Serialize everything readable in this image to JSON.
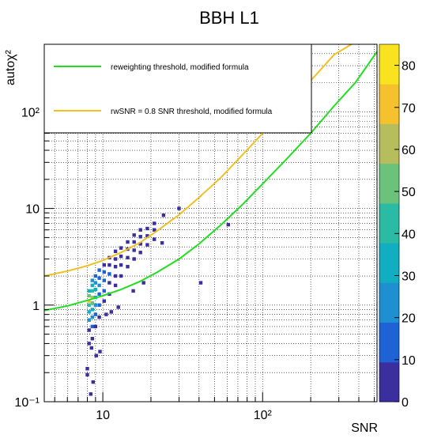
{
  "chart_data": {
    "type": "heatmap",
    "title": "BBH L1",
    "xlabel": "SNR",
    "ylabel": "autoχ²",
    "x_scale": "log",
    "y_scale": "log",
    "xlim": [
      4.3,
      520
    ],
    "ylim": [
      0.1,
      500
    ],
    "grid": true,
    "legend_position": "top-left",
    "x_tick_labels": [
      {
        "value": 10,
        "label": "10"
      },
      {
        "value": 100,
        "label": "10²"
      }
    ],
    "y_tick_labels": [
      {
        "value": 0.1,
        "label": "10⁻¹"
      },
      {
        "value": 1,
        "label": "1"
      },
      {
        "value": 10,
        "label": "10"
      },
      {
        "value": 100,
        "label": "10²"
      }
    ],
    "colorbar": {
      "min": 0,
      "max": 85,
      "ticks": [
        0,
        10,
        20,
        30,
        40,
        50,
        60,
        70,
        80
      ],
      "colors": [
        "#3b2fa0",
        "#1e63d6",
        "#1e8fd0",
        "#10aec0",
        "#2bbba5",
        "#6cc27a",
        "#b6bd5c",
        "#f5c12c",
        "#f9e21e"
      ]
    },
    "series": [
      {
        "name": "reweighting threshold, modified formula",
        "color": "#22dd22",
        "x": [
          4.3,
          6,
          8,
          10,
          13,
          17,
          22,
          30,
          40,
          55,
          75,
          100,
          140,
          200,
          280,
          380,
          520
        ],
        "y": [
          0.88,
          0.98,
          1.12,
          1.25,
          1.45,
          1.75,
          2.2,
          3.0,
          4.3,
          6.8,
          11.0,
          18.0,
          32.0,
          60.0,
          115.0,
          200.0,
          420.0
        ]
      },
      {
        "name": "rwSNR = 0.8 SNR threshold, modified formula",
        "color": "#f0c020",
        "x": [
          4.3,
          6,
          8,
          10,
          13,
          17,
          22,
          30,
          40,
          55,
          75,
          100,
          140,
          200,
          280,
          360
        ],
        "y": [
          2.0,
          2.25,
          2.55,
          2.9,
          3.5,
          4.4,
          5.9,
          8.6,
          13.0,
          21.0,
          36.0,
          60.0,
          110.0,
          210.0,
          390.0,
          600.0
        ]
      }
    ],
    "bins": [
      {
        "x": 8.2,
        "y": 0.4,
        "count": 3
      },
      {
        "x": 8.2,
        "y": 0.55,
        "count": 8
      },
      {
        "x": 8.2,
        "y": 0.7,
        "count": 22
      },
      {
        "x": 8.2,
        "y": 0.85,
        "count": 30
      },
      {
        "x": 8.2,
        "y": 1.0,
        "count": 45
      },
      {
        "x": 8.2,
        "y": 1.1,
        "count": 70
      },
      {
        "x": 8.2,
        "y": 1.25,
        "count": 50
      },
      {
        "x": 8.2,
        "y": 1.4,
        "count": 30
      },
      {
        "x": 8.6,
        "y": 0.45,
        "count": 4
      },
      {
        "x": 8.6,
        "y": 0.6,
        "count": 12
      },
      {
        "x": 8.6,
        "y": 0.75,
        "count": 25
      },
      {
        "x": 8.6,
        "y": 0.9,
        "count": 35
      },
      {
        "x": 8.6,
        "y": 1.05,
        "count": 55
      },
      {
        "x": 8.6,
        "y": 1.2,
        "count": 60
      },
      {
        "x": 8.6,
        "y": 1.4,
        "count": 45
      },
      {
        "x": 8.6,
        "y": 1.6,
        "count": 30
      },
      {
        "x": 8.6,
        "y": 1.8,
        "count": 20
      },
      {
        "x": 9.0,
        "y": 0.6,
        "count": 6
      },
      {
        "x": 9.0,
        "y": 0.8,
        "count": 15
      },
      {
        "x": 9.0,
        "y": 1.0,
        "count": 28
      },
      {
        "x": 9.0,
        "y": 1.2,
        "count": 35
      },
      {
        "x": 9.0,
        "y": 1.45,
        "count": 30
      },
      {
        "x": 9.0,
        "y": 1.7,
        "count": 25
      },
      {
        "x": 9.0,
        "y": 2.0,
        "count": 15
      },
      {
        "x": 9.5,
        "y": 0.75,
        "count": 4
      },
      {
        "x": 9.5,
        "y": 1.0,
        "count": 12
      },
      {
        "x": 9.5,
        "y": 1.3,
        "count": 18
      },
      {
        "x": 9.5,
        "y": 1.6,
        "count": 22
      },
      {
        "x": 9.5,
        "y": 1.9,
        "count": 18
      },
      {
        "x": 9.5,
        "y": 2.3,
        "count": 12
      },
      {
        "x": 10.2,
        "y": 1.1,
        "count": 6
      },
      {
        "x": 10.2,
        "y": 1.4,
        "count": 12
      },
      {
        "x": 10.2,
        "y": 1.8,
        "count": 16
      },
      {
        "x": 10.2,
        "y": 2.2,
        "count": 14
      },
      {
        "x": 10.2,
        "y": 2.6,
        "count": 8
      },
      {
        "x": 11.0,
        "y": 1.3,
        "count": 4
      },
      {
        "x": 11.0,
        "y": 1.7,
        "count": 9
      },
      {
        "x": 11.0,
        "y": 2.1,
        "count": 11
      },
      {
        "x": 11.0,
        "y": 2.6,
        "count": 8
      },
      {
        "x": 11.0,
        "y": 3.1,
        "count": 4
      },
      {
        "x": 12.0,
        "y": 1.6,
        "count": 3
      },
      {
        "x": 12.0,
        "y": 2.0,
        "count": 6
      },
      {
        "x": 12.0,
        "y": 2.5,
        "count": 7
      },
      {
        "x": 12.0,
        "y": 3.0,
        "count": 5
      },
      {
        "x": 12.0,
        "y": 3.6,
        "count": 3
      },
      {
        "x": 13.0,
        "y": 2.0,
        "count": 3
      },
      {
        "x": 13.0,
        "y": 2.6,
        "count": 5
      },
      {
        "x": 13.0,
        "y": 3.2,
        "count": 4
      },
      {
        "x": 13.0,
        "y": 3.9,
        "count": 2
      },
      {
        "x": 14.3,
        "y": 2.5,
        "count": 2
      },
      {
        "x": 14.3,
        "y": 3.1,
        "count": 4
      },
      {
        "x": 14.3,
        "y": 3.8,
        "count": 3
      },
      {
        "x": 14.3,
        "y": 4.5,
        "count": 2
      },
      {
        "x": 15.7,
        "y": 3.0,
        "count": 2
      },
      {
        "x": 15.7,
        "y": 3.7,
        "count": 3
      },
      {
        "x": 15.7,
        "y": 4.5,
        "count": 2
      },
      {
        "x": 15.7,
        "y": 5.3,
        "count": 1
      },
      {
        "x": 17.2,
        "y": 3.5,
        "count": 1
      },
      {
        "x": 17.2,
        "y": 4.3,
        "count": 2
      },
      {
        "x": 17.2,
        "y": 5.1,
        "count": 2
      },
      {
        "x": 17.2,
        "y": 6.0,
        "count": 1
      },
      {
        "x": 19.0,
        "y": 4.2,
        "count": 1
      },
      {
        "x": 19.0,
        "y": 5.2,
        "count": 1
      },
      {
        "x": 19.0,
        "y": 6.2,
        "count": 1
      },
      {
        "x": 21.0,
        "y": 4.8,
        "count": 1
      },
      {
        "x": 21.0,
        "y": 6.0,
        "count": 1
      },
      {
        "x": 21.0,
        "y": 7.0,
        "count": 1
      },
      {
        "x": 23.5,
        "y": 4.4,
        "count": 1
      },
      {
        "x": 24.0,
        "y": 8.5,
        "count": 1
      },
      {
        "x": 30.0,
        "y": 10.0,
        "count": 1
      },
      {
        "x": 41.0,
        "y": 1.7,
        "count": 1
      },
      {
        "x": 61.0,
        "y": 6.8,
        "count": 1
      },
      {
        "x": 18.0,
        "y": 1.7,
        "count": 1
      },
      {
        "x": 15.5,
        "y": 1.4,
        "count": 1
      },
      {
        "x": 12.5,
        "y": 0.95,
        "count": 1
      },
      {
        "x": 11.3,
        "y": 0.85,
        "count": 1
      },
      {
        "x": 10.5,
        "y": 0.8,
        "count": 1
      },
      {
        "x": 8.5,
        "y": 0.36,
        "count": 1
      },
      {
        "x": 9.1,
        "y": 0.3,
        "count": 1
      },
      {
        "x": 9.6,
        "y": 0.33,
        "count": 1
      },
      {
        "x": 8.0,
        "y": 0.22,
        "count": 1
      },
      {
        "x": 8.0,
        "y": 0.19,
        "count": 1
      },
      {
        "x": 8.7,
        "y": 0.16,
        "count": 1
      },
      {
        "x": 8.4,
        "y": 0.12,
        "count": 1
      }
    ]
  }
}
